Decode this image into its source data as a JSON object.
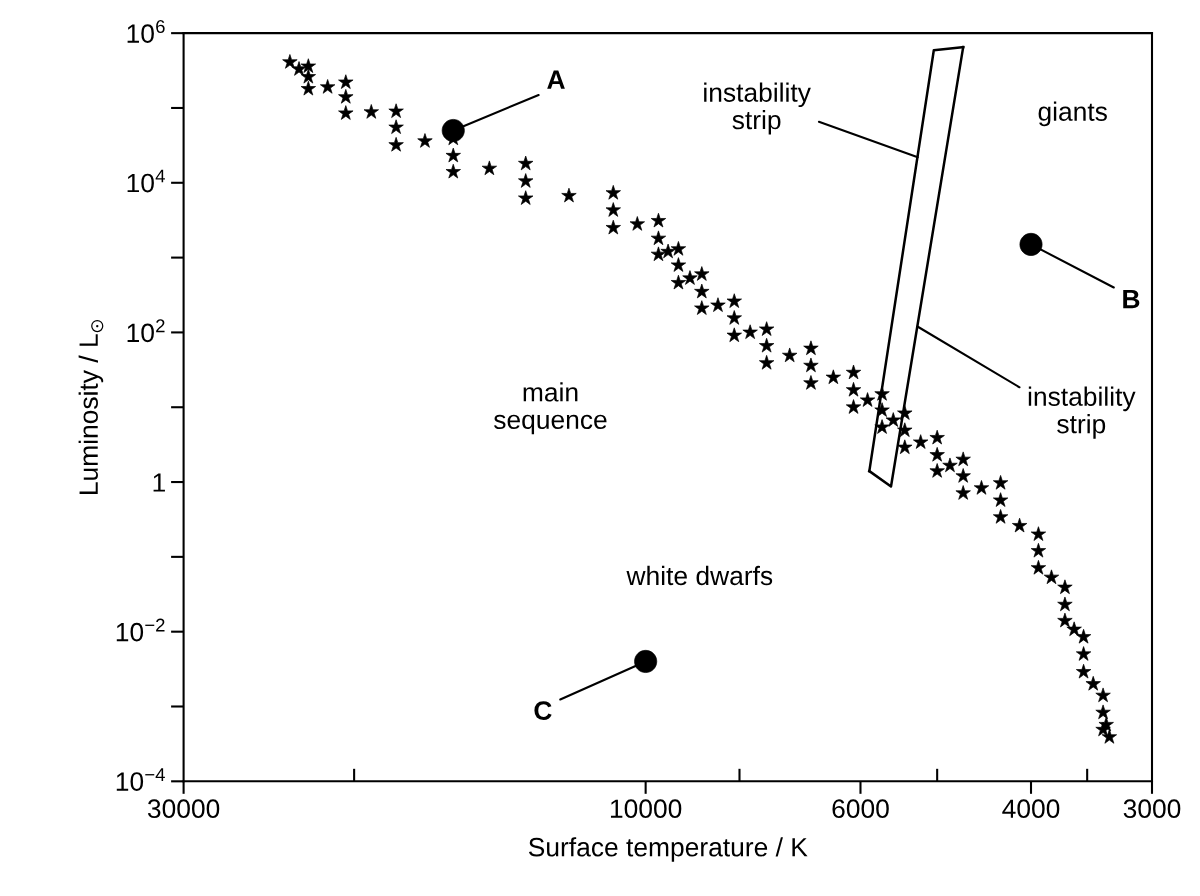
{
  "chart_data": {
    "type": "scatter",
    "xlabel": "Surface temperature / K",
    "ylabel": "Luminosity / L$_{⊙}$",
    "log": "xy",
    "xlim": [
      30000,
      3000
    ],
    "xticks": [
      30000,
      {
        "value": 20000,
        "label": null
      },
      10000,
      {
        "value": 8000,
        "label": null
      },
      6000,
      {
        "value": 5000,
        "label": null
      },
      4000,
      {
        "value": 3500,
        "label": null
      },
      3000
    ],
    "ylim": [
      0.0001,
      1000000
    ],
    "yticks": [
      {
        "value": 1000000,
        "label": "10$^{6}$"
      },
      {
        "value": 100000,
        "label": null
      },
      {
        "value": 10000,
        "label": "10$^{4}$"
      },
      {
        "value": 1000,
        "label": null
      },
      {
        "value": 100,
        "label": "10$^{2}$"
      },
      {
        "value": 10,
        "label": null
      },
      1,
      {
        "value": 0.1,
        "label": null
      },
      {
        "value": 0.01,
        "label": "10$^{−2}$"
      },
      {
        "value": 0.001,
        "label": null
      },
      {
        "value": 0.0001,
        "label": "10$^{−4}$"
      }
    ],
    "series": [
      {
        "marker": "star",
        "color": "#000000",
        "x": [
          23300,
          22300,
          20400,
          18100,
          15800,
          13300,
          10800,
          9700,
          9250,
          8750,
          8100,
          7500,
          6750,
          6100,
          5700,
          5400,
          5000,
          4700,
          4300,
          3930,
          3690,
          3530,
          3370,
          3320,
          22300,
          20400,
          18100,
          15800,
          13300,
          10800,
          9700,
          9250,
          8750,
          8100,
          7500,
          6750,
          6100,
          5700,
          5400,
          5000,
          4700,
          4300,
          3930,
          3690,
          3530,
          3370,
          22300,
          20400,
          18100,
          15800,
          13300,
          10800,
          9700,
          9250,
          8750,
          8100,
          7500,
          6750,
          6100,
          5700,
          5400,
          5000,
          4700,
          4300,
          3930,
          3690,
          3530,
          3370,
          22800,
          21300,
          19200,
          16900,
          14500,
          12000,
          10200,
          9480,
          9000,
          8420,
          7800,
          7100,
          6400,
          5900,
          5550,
          5200,
          4850,
          4500,
          4110,
          3810,
          3610,
          3450,
          3345
        ],
        "values": [
          410000,
          260000,
          140000,
          55000,
          23000,
          10500,
          4300,
          1800,
          790,
          350,
          155,
          66,
          36,
          17,
          9.1,
          4.9,
          2.3,
          1.2,
          0.57,
          0.12,
          0.023,
          0.005,
          0.00083,
          0.00039,
          360000,
          220000,
          90000,
          39000,
          18000,
          7300,
          3100,
          1300,
          600,
          260,
          110,
          61,
          29,
          15,
          8.3,
          3.9,
          2.0,
          0.97,
          0.2,
          0.039,
          0.0085,
          0.0014,
          180000,
          85000,
          32000,
          14000,
          6200,
          2500,
          1100,
          460,
          210,
          91,
          39,
          21,
          10,
          5.4,
          2.9,
          1.4,
          0.71,
          0.34,
          0.071,
          0.014,
          0.0029,
          0.00049,
          330000,
          190000,
          88000,
          36000,
          15500,
          6700,
          2800,
          1200,
          530,
          230,
          100,
          49,
          25,
          12.4,
          6.7,
          3.4,
          1.66,
          0.83,
          0.26,
          0.053,
          0.0107,
          0.002,
          0.00057
        ]
      },
      {
        "marker": "circle",
        "color": "#000000",
        "x": [
          15800,
          4000,
          10000
        ],
        "values": [
          50000,
          1500,
          0.004
        ]
      },
      {
        "type": "line",
        "marker": "none",
        "line_style": "solid",
        "color": "#000000",
        "x": [
          5875,
          5040,
          4700
        ],
        "values": [
          1.4,
          590000,
          650000
        ]
      },
      {
        "type": "line",
        "marker": "none",
        "line_style": "solid",
        "color": "#000000",
        "x": [
          4700,
          5580,
          5875
        ],
        "values": [
          650000,
          0.87,
          1.4
        ]
      }
    ],
    "annotations": [
      {
        "text": "A",
        "x": 15800,
        "y": 50000
      },
      {
        "text": "B",
        "x": 4000,
        "y": 1500
      },
      {
        "text": "C",
        "x": 10000,
        "y": 0.004
      },
      {
        "text": "instability\nstrip",
        "x": 5236,
        "y": 22000
      },
      {
        "text": "instability\nstrip",
        "x": 5240,
        "y": 120
      },
      "giants",
      "main\nsequence",
      "white dwarfs"
    ]
  }
}
